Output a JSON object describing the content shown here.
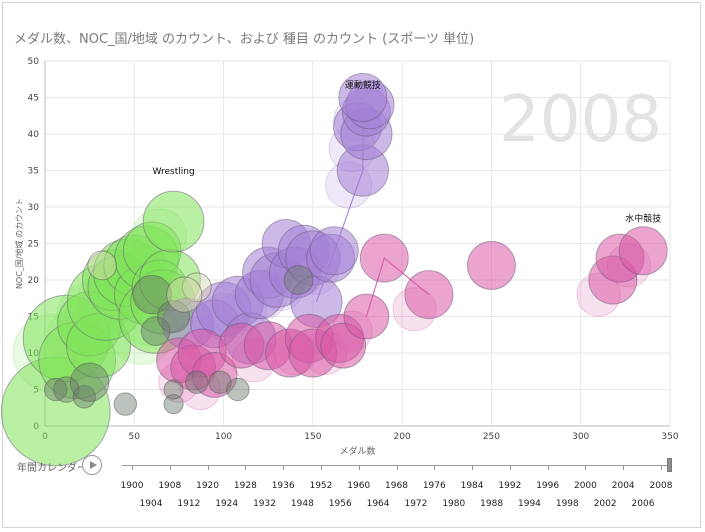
{
  "title": "メダル数、NOC_国/地域 のカウント、および 種目 のカウント (スポーツ 単位)",
  "play": {
    "label": "年間カレンダー",
    "icon": "play-icon"
  },
  "timeline": {
    "years_row1": [
      "1900",
      "1908",
      "1920",
      "1928",
      "1936",
      "1952",
      "1960",
      "1968",
      "1976",
      "1984",
      "1992",
      "1996",
      "2000",
      "2004",
      "2008"
    ],
    "years_row2": [
      "1904",
      "1912",
      "1924",
      "1932",
      "1948",
      "1956",
      "1964",
      "1972",
      "1980",
      "1988",
      "1994",
      "1998",
      "2002",
      "2006"
    ],
    "selected": "2008"
  },
  "colors": {
    "green": "#7fe35a",
    "purple": "#a47fd6",
    "pink": "#d95aa6",
    "grid": "#e6e6e6",
    "watermark": "#e3e3e3"
  },
  "chart_data": {
    "type": "scatter",
    "title": "メダル数、NOC_国/地域 のカウント、および 種目 のカウント (スポーツ 単位)",
    "xlabel": "メダル数",
    "ylabel": "NOC_国/地域 のカウント",
    "xlim": [
      0,
      350
    ],
    "ylim": [
      0,
      50
    ],
    "xticks": [
      0,
      50,
      100,
      150,
      200,
      250,
      300,
      350
    ],
    "yticks": [
      0,
      5,
      10,
      15,
      20,
      25,
      30,
      35,
      40,
      45,
      50
    ],
    "grid": true,
    "play_axis_value": "2008",
    "annotations": [
      "Wrestling",
      "運動競技",
      "水中競技"
    ],
    "series": [
      {
        "name": "Wrestling",
        "color": "#7fe35a",
        "label": "Wrestling",
        "points": [
          {
            "x": 6,
            "y": 2,
            "size": 3.4
          },
          {
            "x": 12,
            "y": 12,
            "size": 2.7
          },
          {
            "x": 18,
            "y": 9,
            "size": 2.4
          },
          {
            "x": 25,
            "y": 14,
            "size": 2.0
          },
          {
            "x": 30,
            "y": 11,
            "size": 2.0
          },
          {
            "x": 34,
            "y": 17,
            "size": 2.4
          },
          {
            "x": 38,
            "y": 20,
            "size": 1.9
          },
          {
            "x": 42,
            "y": 19,
            "size": 2.0
          },
          {
            "x": 46,
            "y": 21,
            "size": 2.1
          },
          {
            "x": 50,
            "y": 22,
            "size": 1.9
          },
          {
            "x": 55,
            "y": 18,
            "size": 1.8
          },
          {
            "x": 57,
            "y": 23,
            "size": 2.0
          },
          {
            "x": 60,
            "y": 24,
            "size": 1.8
          },
          {
            "x": 62,
            "y": 15,
            "size": 2.3
          },
          {
            "x": 64,
            "y": 19,
            "size": 1.7
          },
          {
            "x": 66,
            "y": 17,
            "size": 2.0
          },
          {
            "x": 70,
            "y": 20,
            "size": 1.9
          },
          {
            "x": 72,
            "y": 28,
            "size": 1.9
          }
        ]
      },
      {
        "name": "運動競技",
        "color": "#a47fd6",
        "label": "運動競技",
        "points": [
          {
            "x": 80,
            "y": 14,
            "size": 1.6
          },
          {
            "x": 95,
            "y": 14,
            "size": 1.5
          },
          {
            "x": 100,
            "y": 16,
            "size": 1.7
          },
          {
            "x": 108,
            "y": 17,
            "size": 1.6
          },
          {
            "x": 115,
            "y": 12,
            "size": 1.6
          },
          {
            "x": 120,
            "y": 18,
            "size": 1.5
          },
          {
            "x": 125,
            "y": 21,
            "size": 1.6
          },
          {
            "x": 130,
            "y": 20,
            "size": 1.7
          },
          {
            "x": 135,
            "y": 25,
            "size": 1.5
          },
          {
            "x": 140,
            "y": 21,
            "size": 1.6
          },
          {
            "x": 145,
            "y": 24,
            "size": 1.6
          },
          {
            "x": 150,
            "y": 23,
            "size": 1.7
          },
          {
            "x": 152,
            "y": 17,
            "size": 1.6
          },
          {
            "x": 160,
            "y": 23,
            "size": 1.5
          },
          {
            "x": 162,
            "y": 24,
            "size": 1.5
          },
          {
            "x": 178,
            "y": 35,
            "size": 1.6
          },
          {
            "x": 175,
            "y": 41,
            "size": 1.5
          },
          {
            "x": 180,
            "y": 40,
            "size": 1.6
          },
          {
            "x": 180,
            "y": 43,
            "size": 1.5
          },
          {
            "x": 182,
            "y": 44,
            "size": 1.5
          },
          {
            "x": 178,
            "y": 45,
            "size": 1.5
          }
        ]
      },
      {
        "name": "水中競技",
        "color": "#d95aa6",
        "label": "水中競技",
        "points": [
          {
            "x": 75,
            "y": 9,
            "size": 1.4
          },
          {
            "x": 83,
            "y": 8,
            "size": 1.4
          },
          {
            "x": 88,
            "y": 10,
            "size": 1.5
          },
          {
            "x": 95,
            "y": 7,
            "size": 1.4
          },
          {
            "x": 110,
            "y": 11,
            "size": 1.4
          },
          {
            "x": 125,
            "y": 11,
            "size": 1.5
          },
          {
            "x": 137,
            "y": 10,
            "size": 1.5
          },
          {
            "x": 148,
            "y": 12,
            "size": 1.5
          },
          {
            "x": 150,
            "y": 10,
            "size": 1.5
          },
          {
            "x": 165,
            "y": 12,
            "size": 1.5
          },
          {
            "x": 167,
            "y": 11,
            "size": 1.4
          },
          {
            "x": 180,
            "y": 15,
            "size": 1.4
          },
          {
            "x": 190,
            "y": 23,
            "size": 1.5
          },
          {
            "x": 215,
            "y": 18,
            "size": 1.5
          },
          {
            "x": 250,
            "y": 22,
            "size": 1.5
          },
          {
            "x": 318,
            "y": 20,
            "size": 1.5
          },
          {
            "x": 322,
            "y": 23,
            "size": 1.5
          },
          {
            "x": 335,
            "y": 24,
            "size": 1.5
          }
        ]
      },
      {
        "name": "",
        "color": "#6b7a6b",
        "points": [
          {
            "x": 6,
            "y": 5,
            "size": 0.7
          },
          {
            "x": 12,
            "y": 5,
            "size": 0.8
          },
          {
            "x": 22,
            "y": 4,
            "size": 0.7
          },
          {
            "x": 25,
            "y": 6,
            "size": 1.2
          },
          {
            "x": 45,
            "y": 3,
            "size": 0.7
          },
          {
            "x": 60,
            "y": 18,
            "size": 1.2
          },
          {
            "x": 62,
            "y": 13,
            "size": 0.9
          },
          {
            "x": 72,
            "y": 15,
            "size": 1.0
          },
          {
            "x": 72,
            "y": 3,
            "size": 0.6
          },
          {
            "x": 72,
            "y": 5,
            "size": 0.6
          },
          {
            "x": 85,
            "y": 6,
            "size": 0.7
          },
          {
            "x": 98,
            "y": 6,
            "size": 0.7
          },
          {
            "x": 108,
            "y": 5,
            "size": 0.7
          },
          {
            "x": 142,
            "y": 20,
            "size": 0.9
          }
        ]
      },
      {
        "name": "",
        "color": "#d8d8b0",
        "points": [
          {
            "x": 32,
            "y": 22,
            "size": 0.9
          },
          {
            "x": 85,
            "y": 19,
            "size": 0.9
          },
          {
            "x": 78,
            "y": 18,
            "size": 1.1
          }
        ]
      }
    ]
  }
}
